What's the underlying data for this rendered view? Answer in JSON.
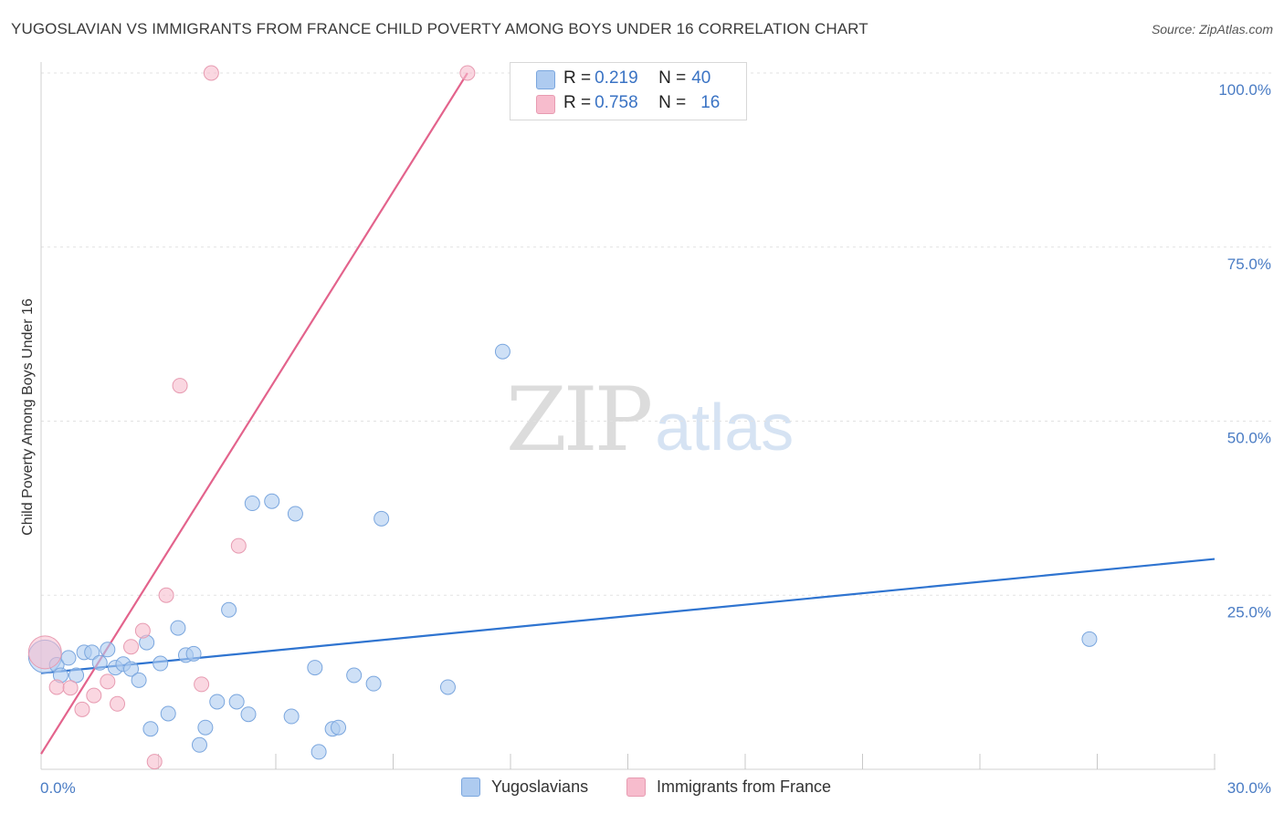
{
  "title": "YUGOSLAVIAN VS IMMIGRANTS FROM FRANCE CHILD POVERTY AMONG BOYS UNDER 16 CORRELATION CHART",
  "source": "Source: ZipAtlas.com",
  "watermark": {
    "zip": "ZIP",
    "atlas": "atlas"
  },
  "legend_top": {
    "rows": [
      {
        "r_label": "R = ",
        "r_value": "0.219",
        "n_label": "N = ",
        "n_value": "40",
        "color": "#aecbf0"
      },
      {
        "r_label": "R = ",
        "r_value": "0.758",
        "n_label": "N = ",
        "n_value": "16",
        "color": "#f7bccd"
      }
    ]
  },
  "legend_bottom": {
    "items": [
      {
        "label": "Yugoslavians",
        "color": "#aecbf0"
      },
      {
        "label": "Immigrants from France",
        "color": "#f7bccd"
      }
    ]
  },
  "chart_data": {
    "type": "scatter",
    "title": "YUGOSLAVIAN VS IMMIGRANTS FROM FRANCE CHILD POVERTY AMONG BOYS UNDER 16 CORRELATION CHART",
    "xlabel": "",
    "ylabel": "Child Poverty Among Boys Under 16",
    "xlim": [
      0,
      30
    ],
    "ylim": [
      0,
      100
    ],
    "x_tick_labels": [
      "0.0%",
      "30.0%"
    ],
    "y_tick_labels": [
      "25.0%",
      "50.0%",
      "75.0%",
      "100.0%"
    ],
    "y_ticks": [
      25,
      50,
      75,
      100
    ],
    "x_minor_ticks": [
      3,
      6,
      9,
      12,
      15,
      18,
      21,
      24,
      27,
      30
    ],
    "series": [
      {
        "name": "Yugoslavians",
        "color": "#aecbf0",
        "stroke": "#7aa6de",
        "trend": {
          "x": [
            0,
            30
          ],
          "y": [
            13.8,
            30.2
          ],
          "color": "#2f74d0"
        },
        "points": [
          {
            "x": 0.1,
            "y": 16.2,
            "big": true
          },
          {
            "x": 0.4,
            "y": 15.0
          },
          {
            "x": 0.5,
            "y": 13.5
          },
          {
            "x": 0.7,
            "y": 16.0
          },
          {
            "x": 0.9,
            "y": 13.5
          },
          {
            "x": 1.1,
            "y": 16.8
          },
          {
            "x": 1.3,
            "y": 16.8
          },
          {
            "x": 1.5,
            "y": 15.3
          },
          {
            "x": 1.7,
            "y": 17.2
          },
          {
            "x": 1.9,
            "y": 14.6
          },
          {
            "x": 2.1,
            "y": 15.1
          },
          {
            "x": 2.3,
            "y": 14.4
          },
          {
            "x": 2.5,
            "y": 12.8
          },
          {
            "x": 2.7,
            "y": 18.2
          },
          {
            "x": 2.8,
            "y": 5.8
          },
          {
            "x": 3.05,
            "y": 15.2
          },
          {
            "x": 3.25,
            "y": 8.0
          },
          {
            "x": 3.5,
            "y": 20.3
          },
          {
            "x": 3.7,
            "y": 16.4
          },
          {
            "x": 3.9,
            "y": 16.6
          },
          {
            "x": 4.05,
            "y": 3.5
          },
          {
            "x": 4.2,
            "y": 6.0
          },
          {
            "x": 4.5,
            "y": 9.7
          },
          {
            "x": 4.8,
            "y": 22.9
          },
          {
            "x": 5.0,
            "y": 9.7
          },
          {
            "x": 5.3,
            "y": 7.9
          },
          {
            "x": 5.4,
            "y": 38.2
          },
          {
            "x": 5.9,
            "y": 38.5
          },
          {
            "x": 6.4,
            "y": 7.6
          },
          {
            "x": 6.5,
            "y": 36.7
          },
          {
            "x": 7.0,
            "y": 14.6
          },
          {
            "x": 7.1,
            "y": 2.5
          },
          {
            "x": 7.45,
            "y": 5.8
          },
          {
            "x": 7.6,
            "y": 6.0
          },
          {
            "x": 8.0,
            "y": 13.5
          },
          {
            "x": 8.5,
            "y": 12.3
          },
          {
            "x": 8.7,
            "y": 36.0
          },
          {
            "x": 10.4,
            "y": 11.8
          },
          {
            "x": 11.8,
            "y": 60.0
          },
          {
            "x": 26.8,
            "y": 18.7
          }
        ]
      },
      {
        "name": "Immigrants from France",
        "color": "#f7bccd",
        "stroke": "#e79bb1",
        "trend": {
          "x": [
            0,
            10.9
          ],
          "y": [
            2.2,
            100
          ],
          "color": "#e3638c"
        },
        "points": [
          {
            "x": 0.1,
            "y": 16.8,
            "big": true
          },
          {
            "x": 0.4,
            "y": 11.8
          },
          {
            "x": 0.75,
            "y": 11.7
          },
          {
            "x": 1.05,
            "y": 8.6
          },
          {
            "x": 1.35,
            "y": 10.6
          },
          {
            "x": 1.7,
            "y": 12.6
          },
          {
            "x": 1.95,
            "y": 9.4
          },
          {
            "x": 2.3,
            "y": 17.6
          },
          {
            "x": 2.6,
            "y": 19.9
          },
          {
            "x": 2.9,
            "y": 1.1
          },
          {
            "x": 3.2,
            "y": 25.0
          },
          {
            "x": 3.55,
            "y": 55.1
          },
          {
            "x": 4.1,
            "y": 12.2
          },
          {
            "x": 4.35,
            "y": 100.0
          },
          {
            "x": 5.05,
            "y": 32.1
          },
          {
            "x": 10.9,
            "y": 100.0
          }
        ]
      }
    ]
  }
}
